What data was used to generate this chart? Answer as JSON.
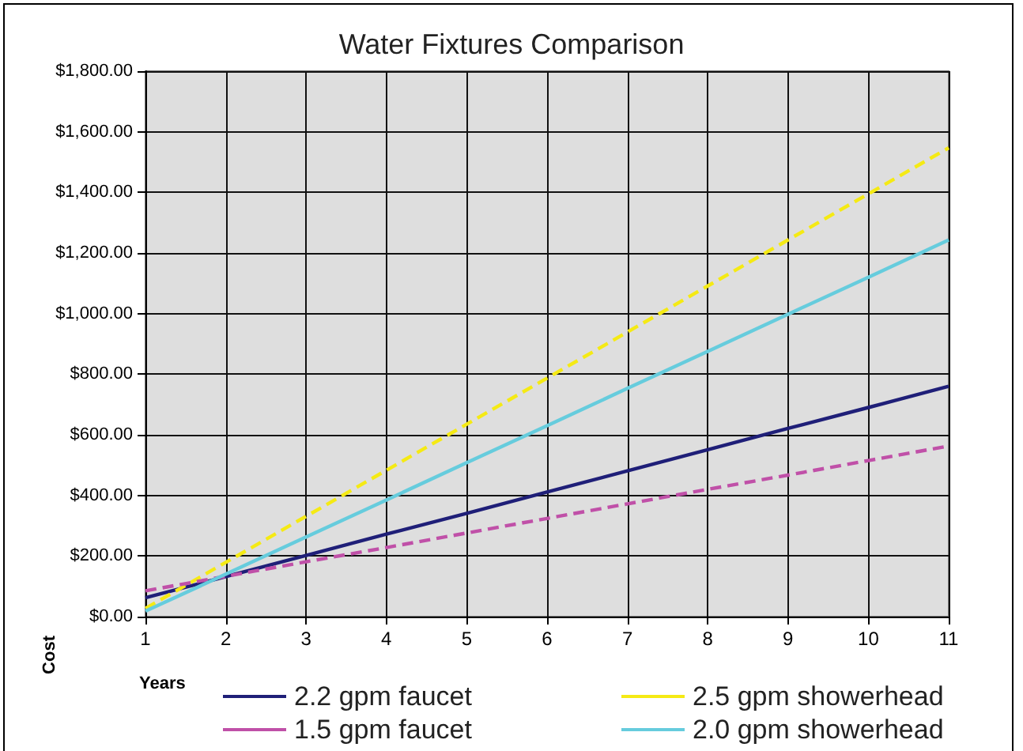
{
  "chart_data": {
    "type": "line",
    "title": "Water Fixtures Comparison",
    "xlabel": "Years",
    "ylabel": "Cost",
    "x": [
      1,
      2,
      3,
      4,
      5,
      6,
      7,
      8,
      9,
      10,
      11
    ],
    "series": [
      {
        "name": "2.2 gpm faucet",
        "color": "#1f1f78",
        "line_style": "solid",
        "values": [
          62,
          132,
          202,
          272,
          341,
          411,
          481,
          551,
          621,
          690,
          760
        ]
      },
      {
        "name": "2.5 gpm showerhead",
        "color": "#f5ea14",
        "line_style": "dashed",
        "values": [
          27,
          179,
          331,
          483,
          635,
          787,
          939,
          1091,
          1243,
          1395,
          1547
        ]
      },
      {
        "name": "1.5 gpm faucet",
        "color": "#c050a8",
        "line_style": "dashed",
        "values": [
          85,
          133,
          181,
          228,
          276,
          324,
          372,
          420,
          467,
          515,
          563
        ]
      },
      {
        "name": "2.0 gpm showerhead",
        "color": "#66ccdd",
        "line_style": "solid",
        "values": [
          18,
          140,
          263,
          385,
          508,
          630,
          753,
          875,
          998,
          1120,
          1243
        ]
      }
    ],
    "xlim": [
      1,
      11
    ],
    "xticks": [
      1,
      2,
      3,
      4,
      5,
      6,
      7,
      8,
      9,
      10,
      11
    ],
    "ylim": [
      0,
      1800
    ],
    "yticks": [
      {
        "value": 0,
        "label": "$0.00"
      },
      {
        "value": 200,
        "label": "$200.00"
      },
      {
        "value": 400,
        "label": "$400.00"
      },
      {
        "value": 600,
        "label": "$600.00"
      },
      {
        "value": 800,
        "label": "$800.00"
      },
      {
        "value": 1000,
        "label": "$1,000.00"
      },
      {
        "value": 1200,
        "label": "$1,200.00"
      },
      {
        "value": 1400,
        "label": "$1,400.00"
      },
      {
        "value": 1600,
        "label": "$1,600.00"
      },
      {
        "value": 1800,
        "label": "$1,800.00"
      }
    ],
    "grid": true,
    "legend": "bottom",
    "marker": "none"
  }
}
